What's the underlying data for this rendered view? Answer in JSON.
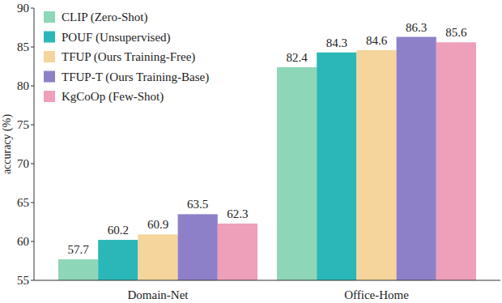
{
  "chart_data": {
    "type": "bar",
    "y_label": "accuracy (%)",
    "categories": [
      "Domain-Net",
      "Office-Home"
    ],
    "series": [
      {
        "name": "CLIP (Zero-Shot)",
        "color": "#8ed6b8",
        "values": [
          57.7,
          82.4
        ]
      },
      {
        "name": "POUF (Unsupervised)",
        "color": "#2bb7b7",
        "values": [
          60.2,
          84.3
        ]
      },
      {
        "name": "TFUP (Ours Training-Free)",
        "color": "#f5d59c",
        "values": [
          60.9,
          84.6
        ]
      },
      {
        "name": "TFUP-T (Ours Training-Base)",
        "color": "#8e80c8",
        "values": [
          63.5,
          86.3
        ]
      },
      {
        "name": "KgCoOp (Few-Shot)",
        "color": "#ee9fba",
        "values": [
          62.3,
          85.6
        ]
      }
    ],
    "ylim": [
      55,
      90
    ],
    "yticks": [
      55,
      60,
      65,
      70,
      75,
      80,
      85,
      90
    ],
    "grid": false,
    "legend": "upper-left",
    "data_labels": true
  }
}
